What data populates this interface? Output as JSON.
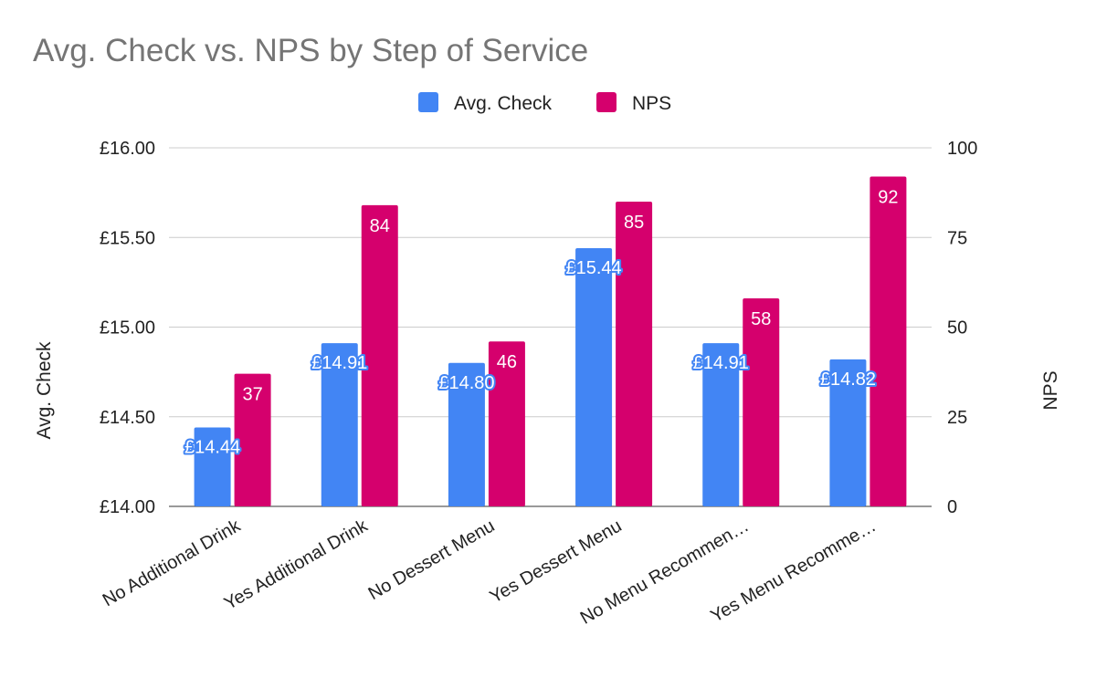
{
  "chart_data": {
    "type": "bar",
    "title": "Avg. Check vs. NPS by Step of Service",
    "categories": [
      "No Additional Drink",
      "Yes Additional Drink",
      "No Dessert Menu",
      "Yes Dessert Menu",
      "No Menu Recommen…",
      "Yes Menu Recomme…"
    ],
    "series": [
      {
        "name": "Avg. Check",
        "axis": "left",
        "color": "#4285f4",
        "values": [
          14.44,
          14.91,
          14.8,
          15.44,
          14.91,
          14.82
        ],
        "labels": [
          "£14.44",
          "£14.91",
          "£14.80",
          "£15.44",
          "£14.91",
          "£14.82"
        ]
      },
      {
        "name": "NPS",
        "axis": "right",
        "color": "#d5006d",
        "values": [
          37,
          84,
          46,
          85,
          58,
          92
        ],
        "labels": [
          "37",
          "84",
          "46",
          "85",
          "58",
          "92"
        ]
      }
    ],
    "left_axis": {
      "title": "Avg. Check",
      "min": 14.0,
      "max": 16.0,
      "ticks": [
        14.0,
        14.5,
        15.0,
        15.5,
        16.0
      ],
      "tick_labels": [
        "£14.00",
        "£14.50",
        "£15.00",
        "£15.50",
        "£16.00"
      ]
    },
    "right_axis": {
      "title": "NPS",
      "min": 0,
      "max": 100,
      "ticks": [
        0,
        25,
        50,
        75,
        100
      ],
      "tick_labels": [
        "0",
        "25",
        "50",
        "75",
        "100"
      ]
    },
    "grid": true,
    "legend_position": "top"
  }
}
